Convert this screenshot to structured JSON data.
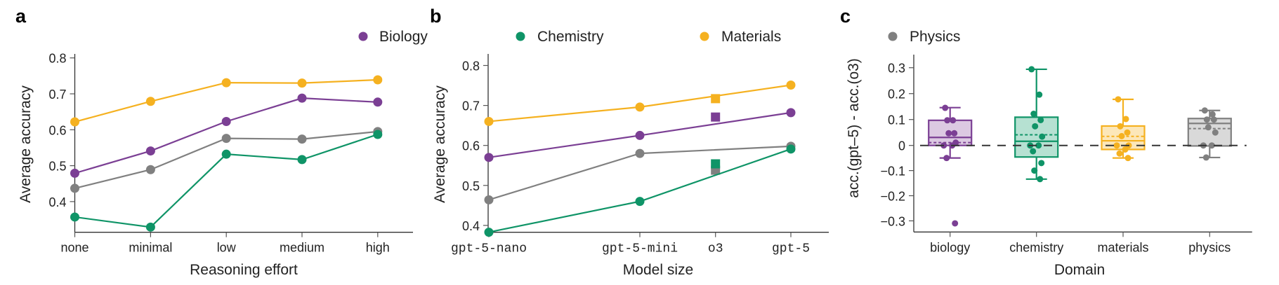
{
  "legend": {
    "items": [
      {
        "label": "Biology",
        "color": "#7B3F94"
      },
      {
        "label": "Chemistry",
        "color": "#0F9467"
      },
      {
        "label": "Materials",
        "color": "#F5B120"
      },
      {
        "label": "Physics",
        "color": "#808080"
      }
    ]
  },
  "chart_data": [
    {
      "panel": "a",
      "type": "line",
      "title": "",
      "xlabel": "Reasoning effort",
      "ylabel": "Average accuracy",
      "categories": [
        "none",
        "minimal",
        "low",
        "medium",
        "high"
      ],
      "yticks": [
        0.4,
        0.5,
        0.6,
        0.7,
        0.8
      ],
      "ytick_labels": [
        "0.4",
        "0.5",
        "0.6",
        "0.7",
        "0.8"
      ],
      "ylim": [
        0.313,
        0.83
      ],
      "grid": false,
      "series": [
        {
          "name": "Materials",
          "color": "#F5B120",
          "values": [
            0.622,
            0.679,
            0.731,
            0.73,
            0.739
          ]
        },
        {
          "name": "Biology",
          "color": "#7B3F94",
          "values": [
            0.479,
            0.541,
            0.623,
            0.688,
            0.677
          ]
        },
        {
          "name": "Physics",
          "color": "#808080",
          "values": [
            0.437,
            0.489,
            0.576,
            0.574,
            0.595
          ]
        },
        {
          "name": "Chemistry",
          "color": "#0F9467",
          "values": [
            0.357,
            0.329,
            0.532,
            0.517,
            0.587
          ]
        }
      ]
    },
    {
      "panel": "b",
      "type": "line",
      "title": "",
      "xlabel": "Model size",
      "ylabel": "Average accuracy",
      "categories": [
        "gpt-5-nano",
        "gpt-5-mini",
        "o3",
        "gpt-5"
      ],
      "line_categories": [
        "gpt-5-nano",
        "gpt-5-mini",
        "gpt-5"
      ],
      "marker_categories": [
        "o3"
      ],
      "yticks": [
        0.4,
        0.5,
        0.6,
        0.7,
        0.8
      ],
      "ytick_labels": [
        "0.4",
        "0.5",
        "0.6",
        "0.7",
        "0.8"
      ],
      "ylim": [
        0.384,
        0.83
      ],
      "grid": false,
      "series": [
        {
          "name": "Materials",
          "color": "#F5B120",
          "line_values": [
            0.66,
            0.696,
            0.751
          ],
          "o3_value": 0.717
        },
        {
          "name": "Biology",
          "color": "#7B3F94",
          "line_values": [
            0.57,
            0.625,
            0.682
          ],
          "o3_value": 0.671
        },
        {
          "name": "Physics",
          "color": "#808080",
          "line_values": [
            0.464,
            0.58,
            0.598
          ],
          "o3_value": 0.538
        },
        {
          "name": "Chemistry",
          "color": "#0F9467",
          "line_values": [
            0.383,
            0.46,
            0.591
          ],
          "o3_value": 0.554
        }
      ]
    },
    {
      "panel": "c",
      "type": "box",
      "title": "",
      "xlabel": "Domain",
      "ylabel": "acc.(gpt–5) - acc.(o3)",
      "categories": [
        "biology",
        "chemistry",
        "materials",
        "physics"
      ],
      "yticks": [
        -0.3,
        -0.2,
        -0.1,
        0,
        0.1,
        0.2,
        0.3
      ],
      "ytick_labels": [
        "−0.3",
        "−0.2",
        "−0.1",
        "0",
        "0.1",
        "0.2",
        "0.3"
      ],
      "ylim": [
        -0.34,
        0.355
      ],
      "reference_line": 0,
      "grid": false,
      "boxes": [
        {
          "name": "biology",
          "color": "#7B3F94",
          "fill": "#DCC9E2",
          "whisker_low": -0.05,
          "q1": 0.0,
          "median": 0.031,
          "mean": 0.011,
          "q3": 0.097,
          "whisker_high": 0.146,
          "points": [
            0.145,
            0.097,
            0.097,
            0.047,
            0.047,
            0.011,
            0.0,
            0.0,
            -0.05,
            -0.31
          ]
        },
        {
          "name": "chemistry",
          "color": "#0F9467",
          "fill": "#B6E1D2",
          "whisker_low": -0.134,
          "q1": -0.046,
          "median": 0.016,
          "mean": 0.041,
          "q3": 0.109,
          "whisker_high": 0.294,
          "points": [
            0.294,
            0.196,
            0.122,
            0.098,
            0.074,
            0.034,
            0.0,
            0.0,
            -0.023,
            -0.07,
            -0.1,
            -0.134
          ]
        },
        {
          "name": "materials",
          "color": "#F5B120",
          "fill": "#FCE7B9",
          "whisker_low": -0.05,
          "q1": -0.016,
          "median": 0.018,
          "mean": 0.035,
          "q3": 0.075,
          "whisker_high": 0.178,
          "points": [
            0.178,
            0.102,
            0.074,
            0.05,
            0.036,
            0.0,
            0.0,
            -0.016,
            -0.032,
            -0.05
          ]
        },
        {
          "name": "physics",
          "color": "#808080",
          "fill": "#D9D9D9",
          "whisker_low": -0.048,
          "q1": -0.002,
          "median": 0.085,
          "mean": 0.065,
          "q3": 0.104,
          "whisker_high": 0.135,
          "points": [
            0.135,
            0.12,
            0.1,
            0.1,
            0.07,
            0.05,
            0.0,
            0.0,
            -0.048
          ]
        }
      ]
    }
  ],
  "panels": {
    "a": {
      "label": "a",
      "xlabel": "Reasoning effort",
      "ylabel": "Average accuracy"
    },
    "b": {
      "label": "b",
      "xlabel": "Model size",
      "ylabel": "Average accuracy"
    },
    "c": {
      "label": "c",
      "xlabel": "Domain",
      "ylabel": "acc.(gpt–5) - acc.(o3)"
    }
  }
}
